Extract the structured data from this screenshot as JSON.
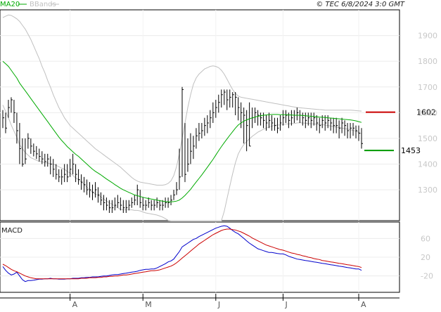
{
  "header": {
    "legend": [
      {
        "label": "MA20",
        "color": "#00aa00"
      },
      {
        "label": "BBands",
        "color": "#c0c0c0"
      }
    ],
    "copyright": "© TEC 6/8/2024 3:0 GMT"
  },
  "chart_data": [
    {
      "type": "candlestick",
      "panel": "price",
      "title": "",
      "xlabel": "",
      "ylabel": "",
      "ylim": [
        1180,
        2000
      ],
      "yticks": [
        1300,
        1400,
        1500,
        1600,
        1700,
        1800,
        1900
      ],
      "x_month_labels": [
        {
          "label": "A",
          "index": 24
        },
        {
          "label": "M",
          "index": 50
        },
        {
          "label": "J",
          "index": 76
        },
        {
          "label": "J",
          "index": 100
        },
        {
          "label": "A",
          "index": 127
        }
      ],
      "colors": {
        "bars": "#000000",
        "ma20": "#00aa00",
        "bbands": "#c0c0c0",
        "resistance": "#cc0000",
        "support": "#009900"
      },
      "ohlc_close": [
        1580,
        1540,
        1620,
        1650,
        1600,
        1530,
        1460,
        1400,
        1420,
        1500,
        1470,
        1450,
        1440,
        1430,
        1420,
        1410,
        1420,
        1400,
        1380,
        1360,
        1350,
        1350,
        1360,
        1350,
        1380,
        1400,
        1360,
        1340,
        1330,
        1320,
        1300,
        1300,
        1290,
        1300,
        1280,
        1260,
        1250,
        1240,
        1230,
        1230,
        1240,
        1250,
        1240,
        1230,
        1230,
        1240,
        1250,
        1260,
        1300,
        1250,
        1240,
        1240,
        1250,
        1240,
        1240,
        1250,
        1240,
        1240,
        1250,
        1250,
        1260,
        1280,
        1300,
        1350,
        1690,
        1360,
        1400,
        1450,
        1470,
        1510,
        1520,
        1530,
        1550,
        1560,
        1580,
        1600,
        1620,
        1640,
        1670,
        1680,
        1650,
        1660,
        1670,
        1660,
        1620,
        1600,
        1590,
        1550,
        1470,
        1580,
        1600,
        1590,
        1580,
        1570,
        1560,
        1570,
        1560,
        1550,
        1540,
        1560,
        1580,
        1590,
        1570,
        1580,
        1590,
        1600,
        1590,
        1580,
        1570,
        1580,
        1570,
        1580,
        1560,
        1550,
        1570,
        1560,
        1570,
        1560,
        1550,
        1550,
        1540,
        1560,
        1550,
        1530,
        1540,
        1540,
        1530,
        1520,
        1480
      ],
      "ohlc_high": [
        1610,
        1600,
        1650,
        1660,
        1650,
        1600,
        1560,
        1500,
        1500,
        1520,
        1500,
        1480,
        1470,
        1460,
        1450,
        1440,
        1440,
        1430,
        1420,
        1400,
        1380,
        1380,
        1400,
        1400,
        1420,
        1440,
        1400,
        1380,
        1360,
        1350,
        1340,
        1330,
        1320,
        1330,
        1310,
        1290,
        1280,
        1270,
        1260,
        1260,
        1270,
        1280,
        1270,
        1260,
        1260,
        1260,
        1270,
        1280,
        1320,
        1300,
        1270,
        1260,
        1270,
        1260,
        1260,
        1270,
        1260,
        1260,
        1270,
        1270,
        1280,
        1300,
        1330,
        1460,
        1700,
        1560,
        1500,
        1520,
        1510,
        1540,
        1560,
        1560,
        1580,
        1590,
        1610,
        1640,
        1650,
        1670,
        1690,
        1690,
        1690,
        1690,
        1680,
        1680,
        1660,
        1640,
        1620,
        1610,
        1640,
        1620,
        1620,
        1610,
        1600,
        1600,
        1590,
        1600,
        1590,
        1580,
        1580,
        1590,
        1610,
        1610,
        1600,
        1610,
        1610,
        1620,
        1610,
        1600,
        1600,
        1600,
        1600,
        1600,
        1590,
        1580,
        1590,
        1590,
        1590,
        1580,
        1580,
        1580,
        1570,
        1580,
        1570,
        1560,
        1560,
        1560,
        1550,
        1550,
        1540
      ],
      "ohlc_low": [
        1540,
        1520,
        1580,
        1600,
        1560,
        1480,
        1400,
        1390,
        1400,
        1460,
        1440,
        1430,
        1420,
        1410,
        1400,
        1390,
        1390,
        1360,
        1350,
        1340,
        1330,
        1320,
        1330,
        1330,
        1350,
        1360,
        1330,
        1320,
        1300,
        1290,
        1280,
        1270,
        1260,
        1270,
        1250,
        1240,
        1220,
        1220,
        1210,
        1210,
        1220,
        1230,
        1220,
        1210,
        1210,
        1220,
        1230,
        1240,
        1240,
        1230,
        1220,
        1220,
        1230,
        1220,
        1220,
        1230,
        1220,
        1220,
        1230,
        1230,
        1240,
        1260,
        1280,
        1300,
        1350,
        1330,
        1370,
        1400,
        1420,
        1460,
        1490,
        1500,
        1510,
        1520,
        1540,
        1560,
        1580,
        1600,
        1620,
        1630,
        1610,
        1620,
        1620,
        1590,
        1570,
        1540,
        1480,
        1450,
        1470,
        1540,
        1560,
        1550,
        1550,
        1540,
        1530,
        1540,
        1530,
        1530,
        1520,
        1530,
        1550,
        1560,
        1540,
        1550,
        1560,
        1570,
        1560,
        1550,
        1540,
        1550,
        1540,
        1550,
        1530,
        1520,
        1540,
        1530,
        1540,
        1530,
        1520,
        1520,
        1500,
        1520,
        1510,
        1500,
        1500,
        1510,
        1500,
        1490,
        1460
      ],
      "ma20": [
        1800,
        1790,
        1780,
        1765,
        1750,
        1735,
        1715,
        1700,
        1685,
        1670,
        1655,
        1640,
        1625,
        1610,
        1595,
        1580,
        1565,
        1550,
        1535,
        1520,
        1505,
        1492,
        1480,
        1468,
        1458,
        1448,
        1438,
        1430,
        1420,
        1410,
        1400,
        1390,
        1380,
        1372,
        1365,
        1358,
        1350,
        1342,
        1335,
        1328,
        1320,
        1313,
        1306,
        1300,
        1295,
        1290,
        1285,
        1280,
        1277,
        1274,
        1271,
        1268,
        1266,
        1264,
        1262,
        1260,
        1258,
        1256,
        1254,
        1253,
        1253,
        1254,
        1256,
        1260,
        1268,
        1278,
        1290,
        1302,
        1316,
        1330,
        1344,
        1358,
        1373,
        1388,
        1403,
        1418,
        1435,
        1452,
        1468,
        1483,
        1498,
        1512,
        1526,
        1540,
        1552,
        1560,
        1567,
        1572,
        1576,
        1580,
        1583,
        1586,
        1588,
        1590,
        1591,
        1592,
        1593,
        1593,
        1593,
        1592,
        1592,
        1592,
        1591,
        1591,
        1590,
        1590,
        1590,
        1589,
        1588,
        1587,
        1586,
        1585,
        1584,
        1583,
        1582,
        1581,
        1580,
        1579,
        1578,
        1577,
        1576,
        1575,
        1574,
        1573,
        1572,
        1570,
        1568,
        1565,
        1562
      ],
      "bb_upper": [
        1970,
        1975,
        1980,
        1978,
        1972,
        1965,
        1955,
        1940,
        1925,
        1905,
        1885,
        1860,
        1835,
        1810,
        1780,
        1755,
        1725,
        1700,
        1670,
        1645,
        1620,
        1600,
        1580,
        1565,
        1550,
        1540,
        1530,
        1520,
        1510,
        1500,
        1490,
        1480,
        1470,
        1460,
        1452,
        1444,
        1436,
        1428,
        1420,
        1412,
        1404,
        1396,
        1388,
        1378,
        1368,
        1358,
        1348,
        1340,
        1334,
        1330,
        1328,
        1326,
        1324,
        1322,
        1320,
        1318,
        1318,
        1318,
        1320,
        1325,
        1335,
        1355,
        1390,
        1440,
        1500,
        1560,
        1620,
        1670,
        1710,
        1735,
        1750,
        1760,
        1770,
        1775,
        1780,
        1782,
        1780,
        1775,
        1765,
        1750,
        1730,
        1710,
        1690,
        1675,
        1665,
        1660,
        1658,
        1656,
        1654,
        1652,
        1650,
        1648,
        1646,
        1644,
        1642,
        1640,
        1638,
        1636,
        1634,
        1632,
        1630,
        1628,
        1626,
        1624,
        1622,
        1620,
        1619,
        1618,
        1617,
        1616,
        1615,
        1614,
        1613,
        1612,
        1611,
        1610,
        1610,
        1610,
        1610,
        1610,
        1610,
        1610,
        1610,
        1610,
        1610,
        1609,
        1608,
        1607,
        1606
      ],
      "bb_lower": [
        1630,
        1605,
        1580,
        1552,
        1528,
        1505,
        1475,
        1460,
        1445,
        1435,
        1425,
        1420,
        1415,
        1410,
        1410,
        1405,
        1405,
        1400,
        1400,
        1395,
        1390,
        1384,
        1380,
        1371,
        1366,
        1356,
        1346,
        1340,
        1330,
        1320,
        1310,
        1300,
        1290,
        1284,
        1278,
        1272,
        1264,
        1256,
        1250,
        1244,
        1236,
        1230,
        1224,
        1222,
        1222,
        1222,
        1222,
        1220,
        1220,
        1218,
        1214,
        1210,
        1208,
        1206,
        1204,
        1202,
        1198,
        1194,
        1188,
        1181,
        1171,
        1153,
        1122,
        1080,
        1036,
        996,
        960,
        934,
        922,
        925,
        938,
        956,
        976,
        1001,
        1026,
        1054,
        1090,
        1129,
        1171,
        1216,
        1266,
        1314,
        1362,
        1405,
        1439,
        1460,
        1476,
        1488,
        1498,
        1508,
        1516,
        1524,
        1530,
        1536,
        1540,
        1544,
        1548,
        1550,
        1552,
        1552,
        1554,
        1556,
        1556,
        1558,
        1558,
        1560,
        1561,
        1560,
        1559,
        1558,
        1557,
        1556,
        1555,
        1554,
        1553,
        1552,
        1550,
        1548,
        1546,
        1544,
        1542,
        1540,
        1538,
        1536,
        1534,
        1531,
        1528,
        1523,
        1518
      ],
      "levels": [
        {
          "name": "resistance",
          "value": 1602,
          "label": "1602",
          "color": "#cc0000"
        },
        {
          "name": "support",
          "value": 1453,
          "label": "1453",
          "color": "#009900"
        }
      ]
    },
    {
      "type": "line",
      "panel": "macd",
      "title": "MACD",
      "xlabel": "",
      "ylabel": "",
      "ylim": [
        -55,
        95
      ],
      "yticks": [
        60,
        20,
        -20
      ],
      "ytick_labels": [
        "60",
        "20",
        "-20"
      ],
      "series": [
        {
          "name": "MACD",
          "color": "#0000cc",
          "values": [
            0,
            -8,
            -14,
            -18,
            -16,
            -12,
            -20,
            -28,
            -32,
            -30,
            -30,
            -29,
            -28,
            -27,
            -27,
            -26,
            -26,
            -25,
            -26,
            -26,
            -27,
            -27,
            -27,
            -26,
            -26,
            -25,
            -25,
            -25,
            -24,
            -24,
            -23,
            -23,
            -22,
            -22,
            -22,
            -21,
            -20,
            -20,
            -19,
            -18,
            -17,
            -17,
            -16,
            -15,
            -14,
            -13,
            -12,
            -11,
            -10,
            -8,
            -7,
            -6,
            -6,
            -5,
            -5,
            -3,
            0,
            3,
            6,
            10,
            12,
            16,
            24,
            32,
            42,
            46,
            50,
            54,
            58,
            60,
            64,
            67,
            70,
            73,
            76,
            79,
            82,
            84,
            86,
            87,
            86,
            82,
            77,
            73,
            70,
            65,
            60,
            55,
            50,
            46,
            42,
            38,
            36,
            34,
            32,
            30,
            30,
            29,
            28,
            27,
            27,
            25,
            22,
            20,
            18,
            16,
            15,
            14,
            13,
            12,
            11,
            10,
            9,
            8,
            7,
            6,
            5,
            4,
            3,
            2,
            1,
            0,
            -1,
            -2,
            -3,
            -4,
            -5,
            -5,
            -8
          ]
        },
        {
          "name": "Signal",
          "color": "#cc0000",
          "values": [
            5,
            2,
            -2,
            -6,
            -9,
            -11,
            -14,
            -17,
            -20,
            -22,
            -24,
            -25,
            -26,
            -26,
            -26,
            -26,
            -26,
            -26,
            -26,
            -26,
            -26,
            -26,
            -26,
            -26,
            -26,
            -26,
            -26,
            -26,
            -25,
            -25,
            -25,
            -24,
            -24,
            -24,
            -23,
            -23,
            -22,
            -22,
            -21,
            -21,
            -20,
            -20,
            -19,
            -18,
            -18,
            -17,
            -16,
            -15,
            -14,
            -13,
            -12,
            -11,
            -10,
            -9,
            -9,
            -8,
            -7,
            -5,
            -3,
            -1,
            1,
            4,
            8,
            13,
            18,
            23,
            28,
            33,
            38,
            43,
            48,
            52,
            56,
            60,
            64,
            68,
            71,
            74,
            77,
            79,
            80,
            80,
            79,
            78,
            76,
            74,
            71,
            68,
            65,
            61,
            58,
            55,
            52,
            49,
            46,
            44,
            42,
            40,
            38,
            36,
            35,
            33,
            31,
            29,
            28,
            26,
            25,
            23,
            22,
            20,
            19,
            17,
            16,
            15,
            13,
            12,
            11,
            10,
            9,
            8,
            7,
            6,
            5,
            4,
            3,
            2,
            1,
            0,
            -2
          ]
        }
      ]
    }
  ]
}
